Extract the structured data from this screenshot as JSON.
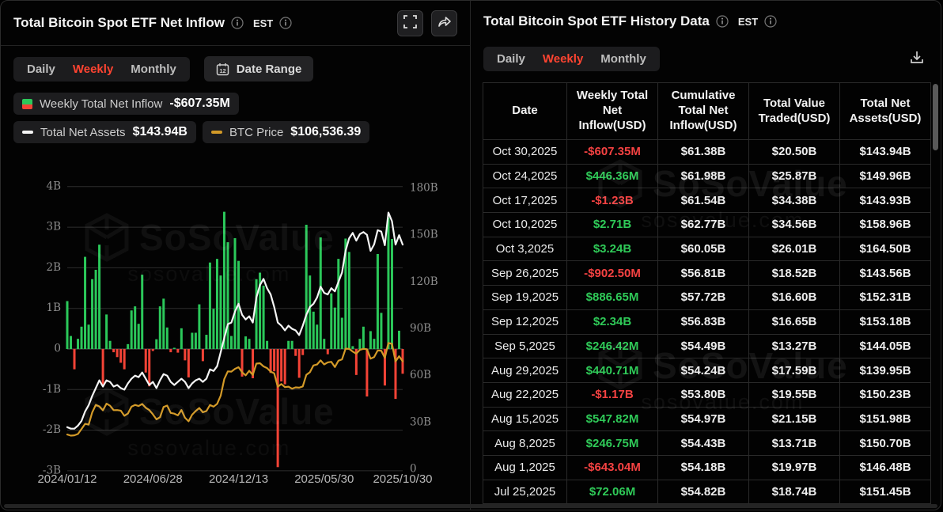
{
  "watermark": {
    "name": "SoSoValue",
    "domain": "sosovalue.com"
  },
  "icons": [
    "info-icon",
    "fullscreen-icon",
    "share-icon",
    "calendar-icon",
    "download-icon"
  ],
  "left_panel": {
    "title": "Total Bitcoin Spot ETF Net Inflow",
    "timezone": "EST",
    "tabs": [
      "Daily",
      "Weekly",
      "Monthly"
    ],
    "active_tab": "Weekly",
    "date_range_label": "Date Range",
    "calendar_day": "12",
    "legend": [
      {
        "label": "Weekly Total Net Inflow",
        "value": "-$607.35M",
        "marker_colors": [
          "#2bc85a",
          "#f44336"
        ]
      },
      {
        "label": "Total Net Assets",
        "value": "$143.94B",
        "marker_colors": [
          "#f5f5f5"
        ]
      },
      {
        "label": "BTC Price",
        "value": "$106,536.39",
        "marker_colors": [
          "#d39a28"
        ]
      }
    ]
  },
  "right_panel": {
    "title": "Total Bitcoin Spot ETF History Data",
    "timezone": "EST",
    "tabs": [
      "Daily",
      "Weekly",
      "Monthly"
    ],
    "active_tab": "Weekly",
    "table": {
      "columns": [
        "Date",
        "Weekly Total Net Inflow(USD)",
        "Cumulative Total Net Inflow(USD)",
        "Total Value Traded(USD)",
        "Total Net Assets(USD)"
      ],
      "rows": [
        {
          "date": "Oct 30,2025",
          "inflow": "-$607.35M",
          "cumulative": "$61.38B",
          "traded": "$20.50B",
          "assets": "$143.94B"
        },
        {
          "date": "Oct 24,2025",
          "inflow": "$446.36M",
          "cumulative": "$61.98B",
          "traded": "$25.87B",
          "assets": "$149.96B"
        },
        {
          "date": "Oct 17,2025",
          "inflow": "-$1.23B",
          "cumulative": "$61.54B",
          "traded": "$34.38B",
          "assets": "$143.93B"
        },
        {
          "date": "Oct 10,2025",
          "inflow": "$2.71B",
          "cumulative": "$62.77B",
          "traded": "$34.56B",
          "assets": "$158.96B"
        },
        {
          "date": "Oct 3,2025",
          "inflow": "$3.24B",
          "cumulative": "$60.05B",
          "traded": "$26.01B",
          "assets": "$164.50B"
        },
        {
          "date": "Sep 26,2025",
          "inflow": "-$902.50M",
          "cumulative": "$56.81B",
          "traded": "$18.52B",
          "assets": "$143.56B"
        },
        {
          "date": "Sep 19,2025",
          "inflow": "$886.65M",
          "cumulative": "$57.72B",
          "traded": "$16.60B",
          "assets": "$152.31B"
        },
        {
          "date": "Sep 12,2025",
          "inflow": "$2.34B",
          "cumulative": "$56.83B",
          "traded": "$16.65B",
          "assets": "$153.18B"
        },
        {
          "date": "Sep 5,2025",
          "inflow": "$246.42M",
          "cumulative": "$54.49B",
          "traded": "$13.27B",
          "assets": "$144.05B"
        },
        {
          "date": "Aug 29,2025",
          "inflow": "$440.71M",
          "cumulative": "$54.24B",
          "traded": "$17.59B",
          "assets": "$139.95B"
        },
        {
          "date": "Aug 22,2025",
          "inflow": "-$1.17B",
          "cumulative": "$53.80B",
          "traded": "$19.55B",
          "assets": "$150.23B"
        },
        {
          "date": "Aug 15,2025",
          "inflow": "$547.82M",
          "cumulative": "$54.97B",
          "traded": "$21.15B",
          "assets": "$151.98B"
        },
        {
          "date": "Aug 8,2025",
          "inflow": "$246.75M",
          "cumulative": "$54.43B",
          "traded": "$13.71B",
          "assets": "$150.70B"
        },
        {
          "date": "Aug 1,2025",
          "inflow": "-$643.04M",
          "cumulative": "$54.18B",
          "traded": "$19.97B",
          "assets": "$146.48B"
        },
        {
          "date": "Jul 25,2025",
          "inflow": "$72.06M",
          "cumulative": "$54.82B",
          "traded": "$18.74B",
          "assets": "$151.45B"
        }
      ]
    }
  },
  "chart_data": {
    "type": "combo",
    "interval": "weekly",
    "start_date": "2024/01/12",
    "end_date": "2025/10/30",
    "x_tick_labels": [
      "2024/01/12",
      "2024/06/28",
      "2024/12/13",
      "2025/05/30",
      "2025/10/30"
    ],
    "x_tick_indices": [
      0,
      24,
      48,
      72,
      94
    ],
    "left_axis": {
      "unit": "B USD",
      "ticks": [
        "4B",
        "3B",
        "2B",
        "1B",
        "0",
        "-1B",
        "-2B",
        "-3B"
      ],
      "values": [
        4,
        3,
        2,
        1,
        0,
        -1,
        -2,
        -3
      ],
      "range": [
        -3,
        4
      ]
    },
    "right_axis": {
      "unit": "B USD",
      "ticks": [
        "180B",
        "150B",
        "120B",
        "90B",
        "60B",
        "30B",
        "0"
      ],
      "values": [
        180,
        150,
        120,
        90,
        60,
        30,
        0
      ],
      "range": [
        0,
        180
      ]
    },
    "series": [
      {
        "name": "Weekly Total Net Inflow",
        "type": "bar",
        "axis": "left",
        "unit": "B USD",
        "positive_color": "#2bc85a",
        "negative_color": "#f44336",
        "values": [
          1.18,
          0.32,
          -0.5,
          0.25,
          0.55,
          2.27,
          0.6,
          1.72,
          1.95,
          2.57,
          -0.89,
          0.85,
          0.2,
          -0.08,
          -0.2,
          -0.34,
          -0.5,
          0.12,
          0.95,
          1.05,
          0.62,
          1.83,
          -0.58,
          -0.92,
          -0.05,
          0.24,
          1.05,
          1.24,
          0.53,
          -0.08,
          0.03,
          -0.09,
          0.51,
          -0.28,
          -0.7,
          0.4,
          0.4,
          1.1,
          -0.3,
          0.35,
          2.13,
          0.99,
          2.22,
          1.81,
          3.38,
          2.63,
          0.32,
          2.73,
          2.17,
          -0.68,
          0.31,
          0.25,
          -0.72,
          1.72,
          1.88,
          1.56,
          0.2,
          -0.59,
          -0.55,
          -2.91,
          -0.8,
          -0.87,
          0.2,
          0.2,
          -0.17,
          -0.71,
          -0.15,
          3.06,
          1.81,
          0.92,
          0.6,
          2.75,
          0.25,
          -0.13,
          1.37,
          1.02,
          2.22,
          0.77,
          2.72,
          2.39,
          0.07,
          -0.64,
          0.25,
          0.55,
          -1.17,
          0.44,
          0.25,
          2.34,
          0.89,
          -0.9,
          3.24,
          2.71,
          -1.23,
          0.45,
          -0.61
        ]
      },
      {
        "name": "Total Net Assets",
        "type": "line",
        "axis": "right",
        "unit": "B USD",
        "color": "#f5f5f5",
        "values": [
          27,
          26,
          26,
          28,
          31,
          37,
          41,
          47,
          52,
          57,
          53,
          57,
          56,
          53,
          54,
          52,
          51,
          55,
          58,
          60,
          59,
          62,
          58,
          54,
          56,
          52,
          57,
          61,
          60,
          56,
          54,
          56,
          58,
          56,
          52,
          55,
          57,
          58,
          56,
          58,
          64,
          63,
          66,
          75,
          84,
          93,
          94,
          101,
          106,
          99,
          96,
          98,
          94,
          110,
          118,
          122,
          116,
          112,
          104,
          94,
          92,
          89,
          92,
          90,
          89,
          86,
          92,
          99,
          104,
          106,
          110,
          117,
          113,
          112,
          116,
          114,
          120,
          126,
          140,
          148,
          151.45,
          146.48,
          150.7,
          151.98,
          150.23,
          139.95,
          144.05,
          153.18,
          152.31,
          143.56,
          164.5,
          158.96,
          143.93,
          149.96,
          143.94
        ]
      },
      {
        "name": "BTC Price",
        "type": "line",
        "axis": "hidden",
        "unit": "K USD",
        "color": "#d39a28",
        "values": [
          42.7,
          41.7,
          42.0,
          43.2,
          47.5,
          52.0,
          51.3,
          62.0,
          68.5,
          67.2,
          63.8,
          69.6,
          67.8,
          63.9,
          64.0,
          63.5,
          59.0,
          61.0,
          67.0,
          68.5,
          67.5,
          69.3,
          66.0,
          64.0,
          60.3,
          55.9,
          57.8,
          66.7,
          67.9,
          61.5,
          60.9,
          59.4,
          64.1,
          57.3,
          54.2,
          60.0,
          63.2,
          65.8,
          62.1,
          63.2,
          68.4,
          67.0,
          69.4,
          76.5,
          91.0,
          97.7,
          97.5,
          99.9,
          101.4,
          97.0,
          94.3,
          98.2,
          94.6,
          104.5,
          104.8,
          102.1,
          100.6,
          97.5,
          96.1,
          84.3,
          86.7,
          84.0,
          84.4,
          82.6,
          83.8,
          83.5,
          84.6,
          94.7,
          97.0,
          102.9,
          103.7,
          107.3,
          103.8,
          105.6,
          106.1,
          101.5,
          107.0,
          108.2,
          117.5,
          117.3,
          115.0,
          113.2,
          116.5,
          117.4,
          117.0,
          108.8,
          110.2,
          115.9,
          115.7,
          109.6,
          122.5,
          121.7,
          106.4,
          111.0,
          106.5
        ]
      }
    ],
    "grid": true,
    "legend_position": "top-left"
  }
}
